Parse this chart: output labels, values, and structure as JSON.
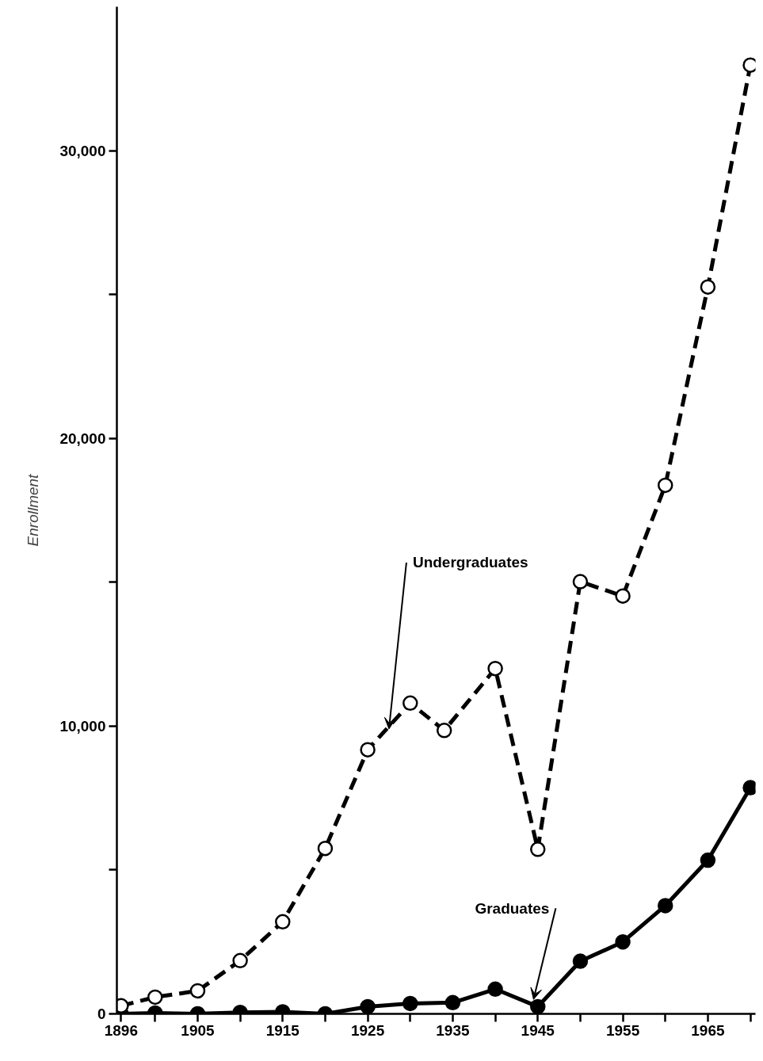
{
  "chart_data": {
    "type": "line",
    "ylabel": "Enrollment",
    "xlim": [
      1895.5,
      1970.6
    ],
    "xticks": [
      1896,
      {
        "value": 1900,
        "label": null
      },
      1905,
      {
        "value": 1910,
        "label": null
      },
      1915,
      {
        "value": 1920,
        "label": null
      },
      1925,
      {
        "value": 1930,
        "label": null
      },
      1935,
      {
        "value": 1940,
        "label": null
      },
      1945,
      {
        "value": 1950,
        "label": null
      },
      1955,
      {
        "value": 1960,
        "label": null
      },
      1965,
      {
        "value": 1970,
        "label": null
      }
    ],
    "ylim": [
      0,
      35000
    ],
    "yticks": [
      {
        "value": 0,
        "label": "0"
      },
      {
        "value": 5000,
        "label": null
      },
      {
        "value": 10000,
        "label": "10,000"
      },
      {
        "value": 15000,
        "label": null
      },
      {
        "value": 20000,
        "label": "20,000"
      },
      {
        "value": 25000,
        "label": null
      },
      {
        "value": 30000,
        "label": "30,000"
      }
    ],
    "grid": false,
    "marker": "circle",
    "series": [
      {
        "color": "#000000",
        "line_style": "dashed",
        "x": [
          1896,
          1900,
          1905,
          1910,
          1915,
          1920,
          1925,
          1930,
          1934,
          1940,
          1945,
          1950,
          1955,
          1960,
          1965,
          1970
        ],
        "values": [
          280,
          580,
          800,
          1850,
          3200,
          5750,
          9180,
          10800,
          9850,
          12000,
          5720,
          15020,
          14520,
          18370,
          25260,
          32970
        ]
      },
      {
        "color": "#000000",
        "line_style": "solid",
        "x": [
          1896,
          1900,
          1905,
          1910,
          1915,
          1920,
          1925,
          1930,
          1935,
          1940,
          1945,
          1950,
          1955,
          1960,
          1965,
          1970
        ],
        "values": [
          0,
          30,
          0,
          50,
          70,
          0,
          250,
          360,
          390,
          860,
          250,
          1830,
          2500,
          3760,
          5340,
          7860
        ]
      }
    ],
    "annotations": [
      {
        "text": "Undergraduates",
        "x": 1927.5,
        "y": 9900
      },
      {
        "text": "Graduates",
        "x": 1944.5,
        "y": 500
      }
    ]
  }
}
